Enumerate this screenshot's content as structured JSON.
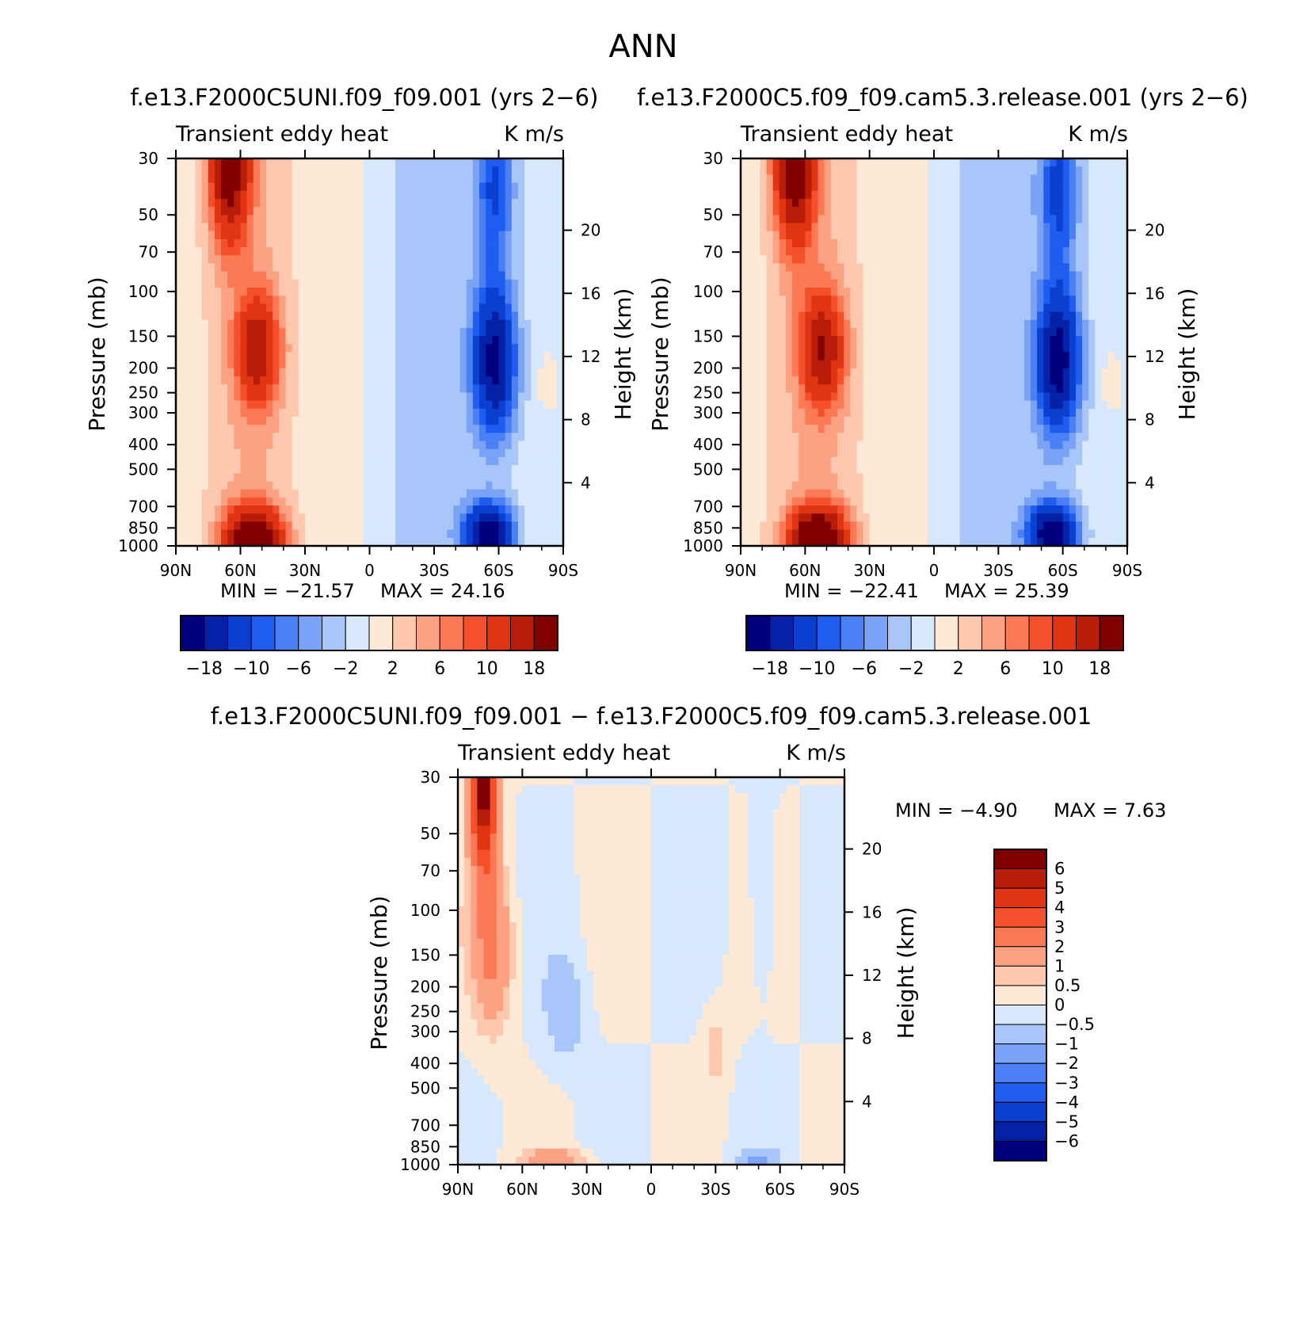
{
  "figure": {
    "title": "ANN"
  },
  "colors": {
    "full_levels": [
      "#00007f",
      "#0521a6",
      "#0a3fd0",
      "#1f5cf0",
      "#4a80f5",
      "#7aa3f7",
      "#a9c6fa",
      "#d7e8fd",
      "#fde9d6",
      "#fdc8ad",
      "#fca283",
      "#fb7a55",
      "#f4502b",
      "#df3512",
      "#b81d0a",
      "#800000"
    ],
    "diff_levels": [
      "#00007f",
      "#0521a6",
      "#0a3fd0",
      "#1f5cf0",
      "#4a80f5",
      "#7aa3f7",
      "#a9c6fa",
      "#d7e8fd",
      "#fde9d6",
      "#fdc8ad",
      "#fca283",
      "#fb7a55",
      "#f4502b",
      "#df3512",
      "#b81d0a",
      "#800000"
    ]
  },
  "chart_data": [
    {
      "id": "panel-a",
      "type": "heatmap",
      "title": "f.e13.F2000C5UNI.f09_f09.001 (yrs 2−6)",
      "left_label": "Transient eddy heat",
      "right_label": "K m/s",
      "xlabel": "",
      "ylabel": "Pressure (mb)",
      "y2label": "Height (km)",
      "x_ticks": [
        "90N",
        "60N",
        "30N",
        "0",
        "30S",
        "60S",
        "90S"
      ],
      "x_tick_values": [
        90,
        60,
        30,
        0,
        -30,
        -60,
        -90
      ],
      "y_ticks": [
        "30",
        "50",
        "70",
        "100",
        "150",
        "200",
        "250",
        "300",
        "400",
        "500",
        "700",
        "850",
        "1000"
      ],
      "y_tick_values": [
        30,
        50,
        70,
        100,
        150,
        200,
        250,
        300,
        400,
        500,
        700,
        850,
        1000
      ],
      "y2_ticks": [
        "20",
        "16",
        "12",
        "8",
        "4"
      ],
      "y2_tick_values": [
        20,
        16,
        12,
        8,
        4
      ],
      "ylim": [
        1000,
        30
      ],
      "xlim": [
        90,
        -90
      ],
      "min_label": "MIN = −21.57",
      "max_label": "MAX =   24.16",
      "min": -21.57,
      "max": 24.16,
      "colorbar_labels": [
        "−18",
        "−10",
        "−6",
        "−2",
        "2",
        "6",
        "10",
        "18"
      ],
      "levels": [
        -18,
        -14,
        -10,
        -8,
        -6,
        -4,
        -2,
        0,
        2,
        4,
        6,
        8,
        10,
        14,
        18
      ]
    },
    {
      "id": "panel-b",
      "type": "heatmap",
      "title": "f.e13.F2000C5.f09_f09.cam5.3.release.001 (yrs 2−6)",
      "left_label": "Transient eddy heat",
      "right_label": "K m/s",
      "xlabel": "",
      "ylabel": "Pressure (mb)",
      "y2label": "Height (km)",
      "x_ticks": [
        "90N",
        "60N",
        "30N",
        "0",
        "30S",
        "60S",
        "90S"
      ],
      "x_tick_values": [
        90,
        60,
        30,
        0,
        -30,
        -60,
        -90
      ],
      "y_ticks": [
        "30",
        "50",
        "70",
        "100",
        "150",
        "200",
        "250",
        "300",
        "400",
        "500",
        "700",
        "850",
        "1000"
      ],
      "y_tick_values": [
        30,
        50,
        70,
        100,
        150,
        200,
        250,
        300,
        400,
        500,
        700,
        850,
        1000
      ],
      "y2_ticks": [
        "20",
        "16",
        "12",
        "8",
        "4"
      ],
      "y2_tick_values": [
        20,
        16,
        12,
        8,
        4
      ],
      "ylim": [
        1000,
        30
      ],
      "xlim": [
        90,
        -90
      ],
      "min_label": "MIN = −22.41",
      "max_label": "MAX =   25.39",
      "min": -22.41,
      "max": 25.39,
      "colorbar_labels": [
        "−18",
        "−10",
        "−6",
        "−2",
        "2",
        "6",
        "10",
        "18"
      ],
      "levels": [
        -18,
        -14,
        -10,
        -8,
        -6,
        -4,
        -2,
        0,
        2,
        4,
        6,
        8,
        10,
        14,
        18
      ]
    },
    {
      "id": "panel-c",
      "type": "heatmap",
      "title": "f.e13.F2000C5UNI.f09_f09.001 − f.e13.F2000C5.f09_f09.cam5.3.release.001",
      "left_label": "Transient eddy heat",
      "right_label": "K m/s",
      "xlabel": "",
      "ylabel": "Pressure (mb)",
      "y2label": "Height (km)",
      "x_ticks": [
        "90N",
        "60N",
        "30N",
        "0",
        "30S",
        "60S",
        "90S"
      ],
      "x_tick_values": [
        90,
        60,
        30,
        0,
        -30,
        -60,
        -90
      ],
      "y_ticks": [
        "30",
        "50",
        "70",
        "100",
        "150",
        "200",
        "250",
        "300",
        "400",
        "500",
        "700",
        "850",
        "1000"
      ],
      "y_tick_values": [
        30,
        50,
        70,
        100,
        150,
        200,
        250,
        300,
        400,
        500,
        700,
        850,
        1000
      ],
      "y2_ticks": [
        "20",
        "16",
        "12",
        "8",
        "4"
      ],
      "y2_tick_values": [
        20,
        16,
        12,
        8,
        4
      ],
      "ylim": [
        1000,
        30
      ],
      "xlim": [
        90,
        -90
      ],
      "min_label": "MIN =   −4.90",
      "max_label": "MAX =    7.63",
      "min": -4.9,
      "max": 7.63,
      "colorbar_labels": [
        "6",
        "5",
        "4",
        "3",
        "2",
        "1",
        "0.5",
        "0",
        "−0.5",
        "−1",
        "−2",
        "−3",
        "−4",
        "−5",
        "−6"
      ],
      "levels": [
        -6,
        -5,
        -4,
        -3,
        -2,
        -1,
        -0.5,
        0,
        0.5,
        1,
        2,
        3,
        4,
        5,
        6
      ]
    }
  ]
}
